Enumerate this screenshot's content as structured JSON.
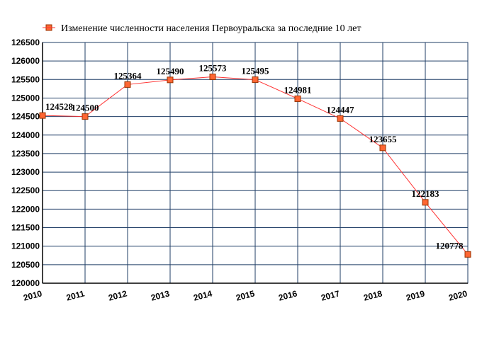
{
  "chart_data": {
    "type": "line",
    "title": "",
    "legend": "Изменение численности населения Первоуральска за последние 10 лет",
    "legend_position": "top-left",
    "xlabel": "",
    "ylabel": "",
    "x": [
      "2010",
      "2011",
      "2012",
      "2013",
      "2014",
      "2015",
      "2016",
      "2017",
      "2018",
      "2019",
      "2020"
    ],
    "values": [
      124528,
      124500,
      125364,
      125490,
      125573,
      125495,
      124981,
      124447,
      123655,
      122183,
      120778
    ],
    "data_labels": [
      "124528",
      "124500",
      "125364",
      "125490",
      "125573",
      "125495",
      "124981",
      "124447",
      "123655",
      "122183",
      "120778"
    ],
    "ylim": [
      120000,
      126500
    ],
    "yticks": [
      "120000",
      "120500",
      "121000",
      "121500",
      "122000",
      "122500",
      "123000",
      "123500",
      "124000",
      "124500",
      "125000",
      "125500",
      "126000",
      "126500"
    ],
    "grid": true,
    "colors": {
      "line": "#ff3333",
      "marker_fill": "#ff6633",
      "marker_stroke": "#993300",
      "grid": "#1f3d66",
      "axis": "#000000"
    }
  }
}
